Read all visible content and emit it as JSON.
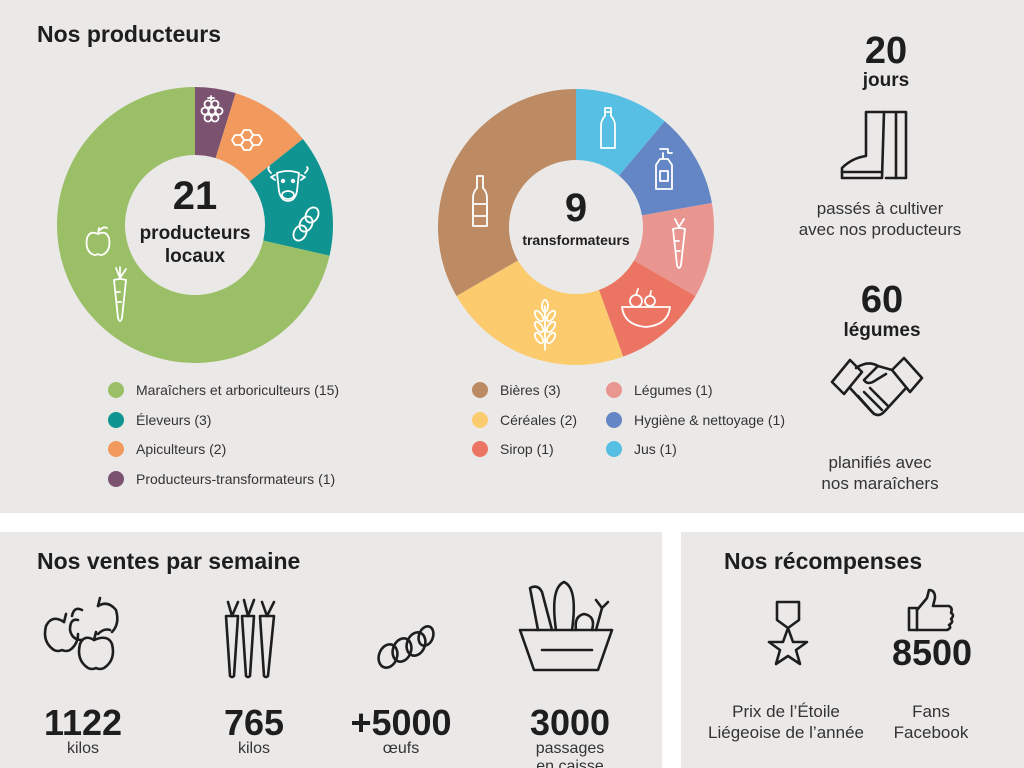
{
  "producers": {
    "title": "Nos producteurs",
    "total": "21",
    "total_label": [
      "producteurs",
      "locaux"
    ],
    "legend": [
      {
        "label": "Maraîchers et arboriculteurs (15)",
        "value": 15,
        "color": "#9bbf66"
      },
      {
        "label": "Éleveurs (3)",
        "value": 3,
        "color": "#0f9491"
      },
      {
        "label": "Apiculteurs (2)",
        "value": 2,
        "color": "#f29a5e"
      },
      {
        "label": "Producteurs-transformateurs (1)",
        "value": 1,
        "color": "#7b5270"
      }
    ]
  },
  "transformers": {
    "total": "9",
    "total_label": "transformateurs",
    "legend": [
      {
        "label": "Bières (3)",
        "value": 3,
        "color": "#bc8b63"
      },
      {
        "label": "Céréales (2)",
        "value": 2,
        "color": "#fbcb6d"
      },
      {
        "label": "Sirop (1)",
        "value": 1,
        "color": "#ec7462"
      },
      {
        "label": "Légumes (1)",
        "value": 1,
        "color": "#e8968f"
      },
      {
        "label": "Hygiène & nettoyage (1)",
        "value": 1,
        "color": "#6586c5"
      },
      {
        "label": "Jus (1)",
        "value": 1,
        "color": "#56bfe3"
      }
    ]
  },
  "days": {
    "number": "20",
    "unit": "jours",
    "caption": [
      "passés à cultiver",
      "avec nos producteurs"
    ],
    "icon": "boots-icon"
  },
  "vegetables": {
    "number": "60",
    "unit": "légumes",
    "caption": [
      "planifiés avec",
      "nos maraîchers"
    ],
    "icon": "handshake-icon"
  },
  "sales": {
    "title": "Nos ventes par semaine",
    "items": [
      {
        "value": "1122",
        "unit": "kilos",
        "icon": "apples-icon"
      },
      {
        "value": "765",
        "unit": "kilos",
        "icon": "carrots-icon"
      },
      {
        "value": "+5000",
        "unit": "œufs",
        "icon": "eggs-icon"
      },
      {
        "value": "3000",
        "unit": "passages",
        "unit2": "en caisse",
        "icon": "basket-icon"
      }
    ]
  },
  "awards": {
    "title": "Nos récompenses",
    "prize": [
      "Prix de l’Étoile",
      "Liégeoise de l’année"
    ],
    "fans_number": "8500",
    "fans": [
      "Fans",
      "Facebook"
    ]
  }
}
